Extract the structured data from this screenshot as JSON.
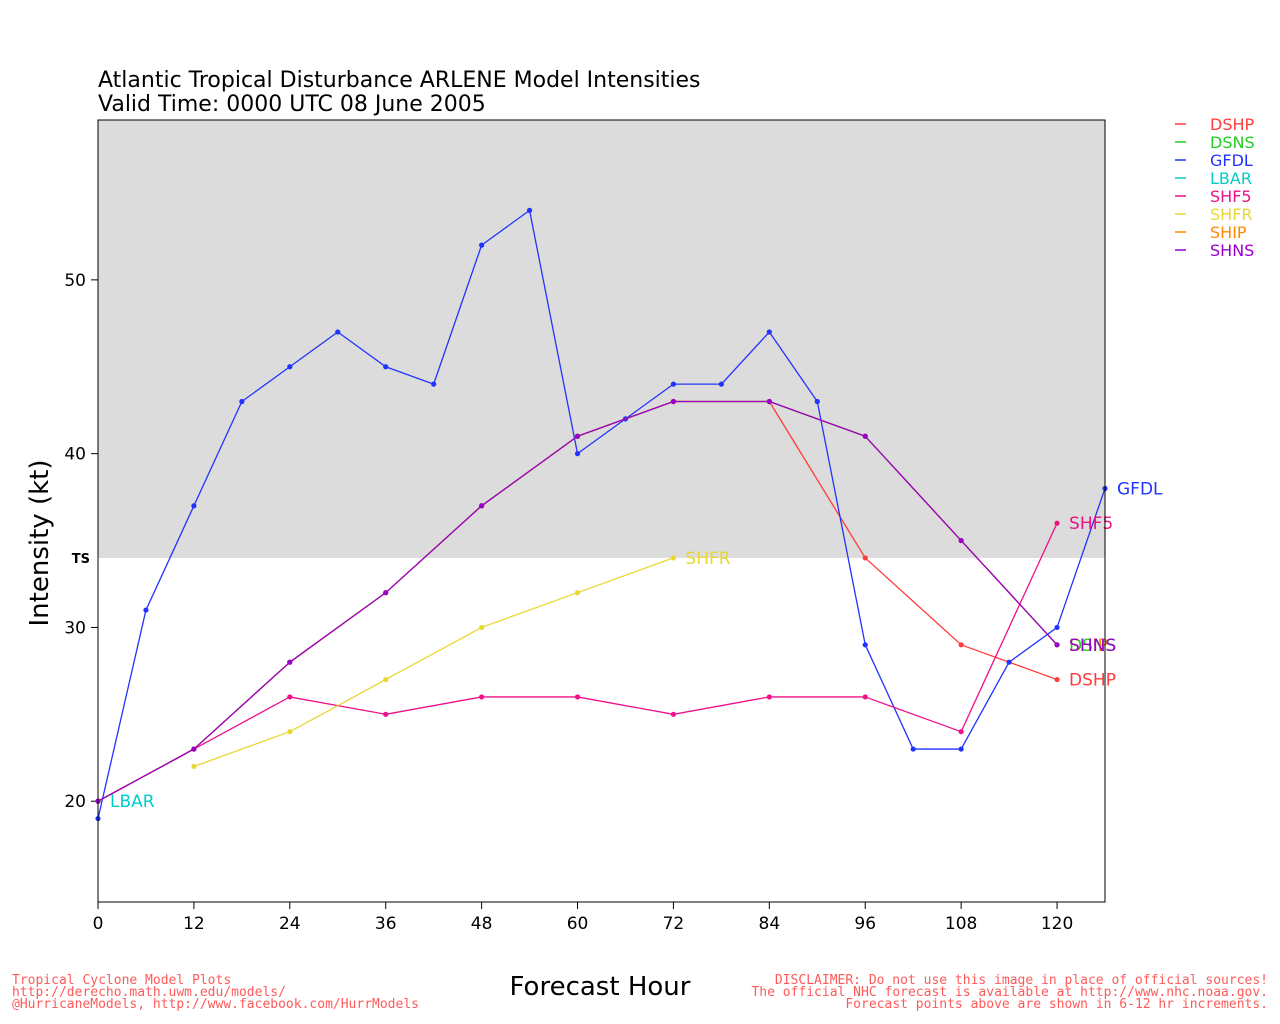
{
  "chart_data": {
    "type": "line",
    "title_line1": "Atlantic Tropical Disturbance ARLENE Model Intensities",
    "title_line2": "Valid Time: 0000 UTC 08 June 2005",
    "xlabel": "Forecast Hour",
    "ylabel": "Intensity (kt)",
    "xlim": [
      0,
      126
    ],
    "ylim": [
      14.2,
      59.2
    ],
    "xticks": [
      0,
      12,
      24,
      36,
      48,
      60,
      72,
      84,
      96,
      108,
      120
    ],
    "yticks": [
      20,
      30,
      40,
      50
    ],
    "ts_threshold": 34,
    "ts_label": "TS",
    "ts_region_color": "#dcdcdc",
    "legend_position": "right",
    "series": [
      {
        "name": "DSHP",
        "color": "#ff3b3b",
        "x": [
          0,
          12,
          24,
          36,
          48,
          60,
          72,
          84,
          96,
          108,
          120
        ],
        "y": [
          20,
          23,
          28,
          32,
          37,
          41,
          43,
          43,
          34,
          29,
          27
        ]
      },
      {
        "name": "DSNS",
        "color": "#22cc22",
        "x": [
          0,
          12,
          24,
          36,
          48,
          60,
          72,
          84,
          96,
          108,
          120
        ],
        "y": [
          20,
          23,
          28,
          32,
          37,
          41,
          43,
          43,
          41,
          35,
          29
        ]
      },
      {
        "name": "GFDL",
        "color": "#2233ff",
        "x": [
          0,
          6,
          12,
          18,
          24,
          30,
          36,
          42,
          48,
          54,
          60,
          66,
          72,
          78,
          84,
          90,
          96,
          102,
          108,
          114,
          120,
          126
        ],
        "y": [
          19,
          31,
          37,
          43,
          45,
          47,
          45,
          44,
          52,
          54,
          40,
          42,
          44,
          44,
          47,
          43,
          29,
          23,
          23,
          28,
          30,
          38
        ]
      },
      {
        "name": "LBAR",
        "color": "#00cccc",
        "x": [
          0
        ],
        "y": [
          20
        ]
      },
      {
        "name": "SHF5",
        "color": "#ee1188",
        "x": [
          0,
          12,
          24,
          36,
          48,
          60,
          72,
          84,
          96,
          108,
          120
        ],
        "y": [
          20,
          23,
          26,
          25,
          26,
          26,
          25,
          26,
          26,
          24,
          36
        ]
      },
      {
        "name": "SHFR",
        "color": "#e8d830",
        "x": [
          12,
          24,
          36,
          48,
          60,
          72
        ],
        "y": [
          22,
          24,
          27,
          30,
          32,
          34
        ]
      },
      {
        "name": "SHIP",
        "color": "#ff8800",
        "x": [
          0,
          12,
          24,
          36,
          48,
          60,
          72,
          84,
          96,
          108,
          120
        ],
        "y": [
          20,
          23,
          28,
          32,
          37,
          41,
          43,
          43,
          41,
          35,
          29
        ]
      },
      {
        "name": "SHNS",
        "color": "#9900cc",
        "x": [
          0,
          12,
          24,
          36,
          48,
          60,
          72,
          84,
          96,
          108,
          120
        ],
        "y": [
          20,
          23,
          28,
          32,
          37,
          41,
          43,
          43,
          41,
          35,
          29
        ]
      }
    ]
  },
  "footer": {
    "left_line1": "Tropical Cyclone Model Plots",
    "left_line2": "http://derecho.math.uwm.edu/models/",
    "left_line3": "@HurricaneModels, http://www.facebook.com/HurrModels",
    "right_line1": "DISCLAIMER: Do not use this image in place of official sources!",
    "right_line2": "The official NHC forecast is available at http://www.nhc.noaa.gov.",
    "right_line3": "Forecast points above are shown in 6-12 hr increments."
  }
}
